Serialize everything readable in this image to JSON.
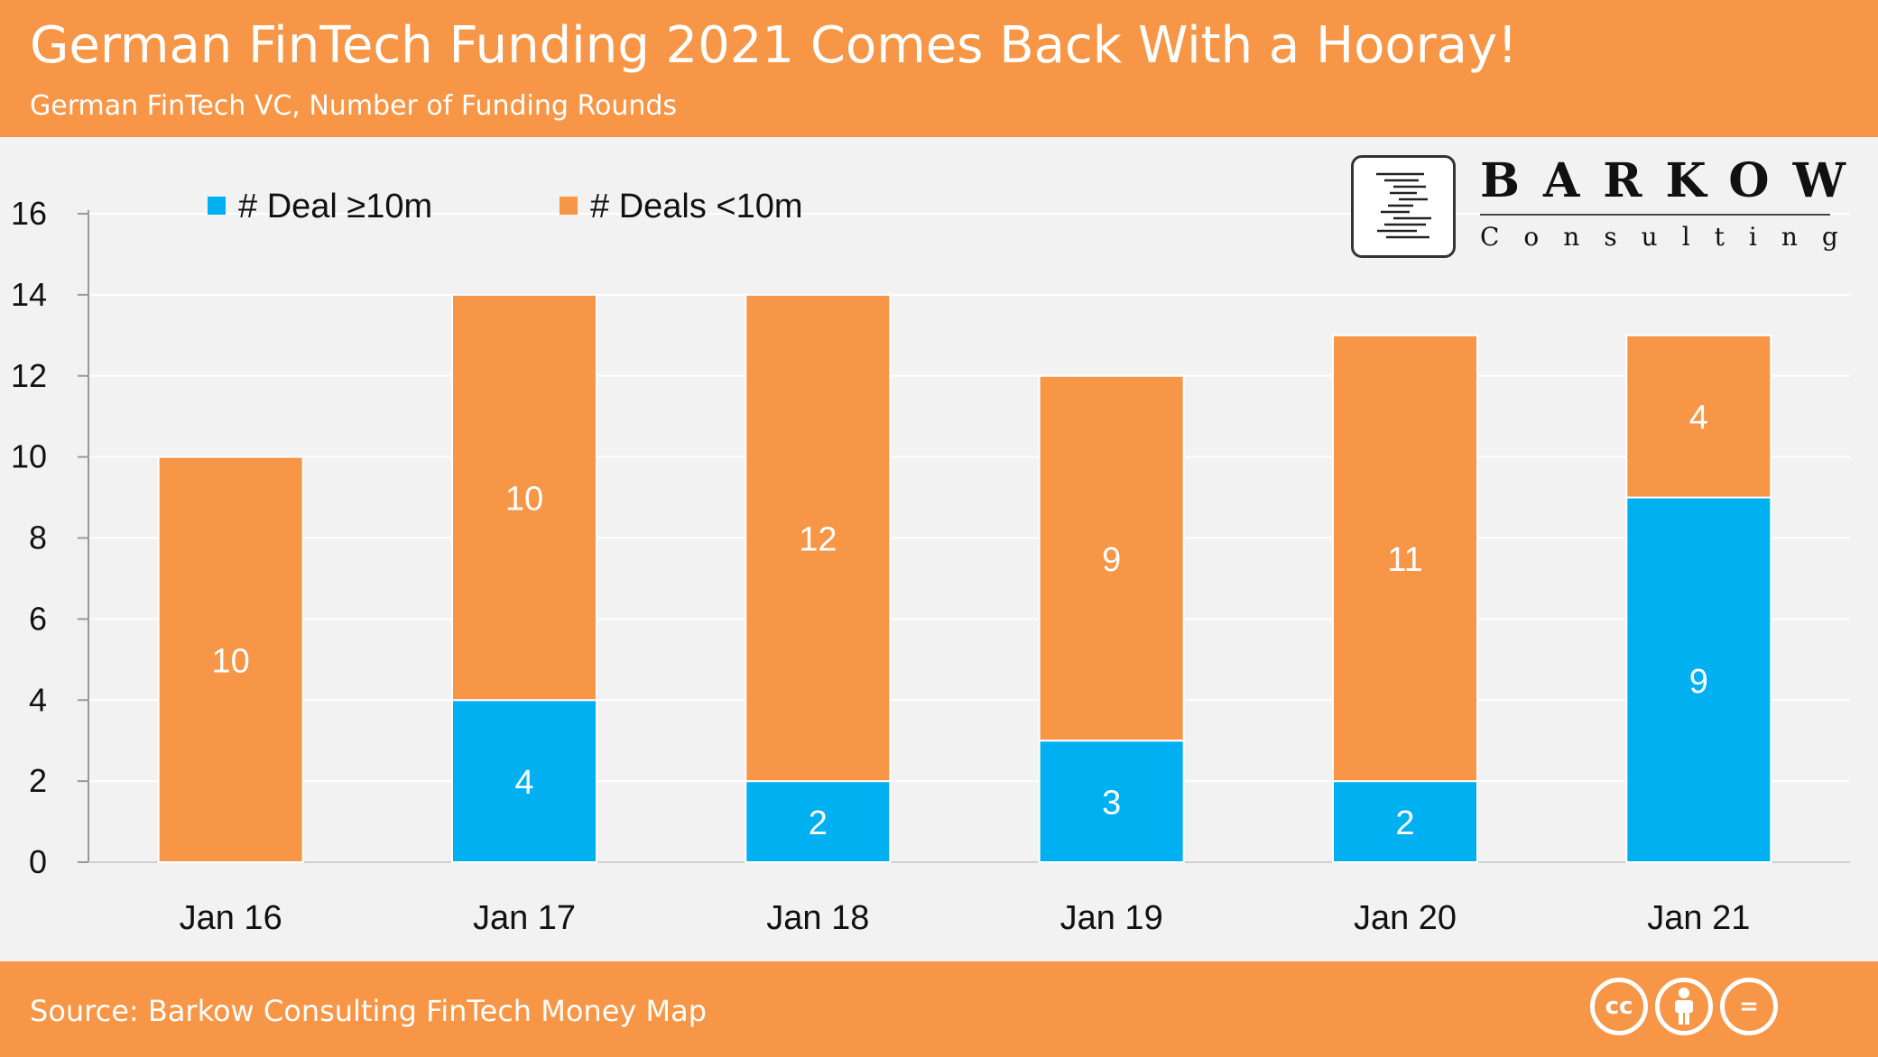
{
  "header": {
    "title": "German FinTech Funding 2021 Comes Back With a Hooray!",
    "subtitle": "German FinTech VC, Number of Funding Rounds"
  },
  "logo": {
    "wordmark": "BARKOW",
    "tagline": "Consulting"
  },
  "footer": {
    "source": "Source: Barkow Consulting FinTech Money Map",
    "license_icons": [
      "cc-icon",
      "by-icon",
      "nd-icon"
    ],
    "license_glyphs": [
      "cc",
      "=",
      "="
    ]
  },
  "colors": {
    "header_bg": "#f79646",
    "series_large": "#00b0f0",
    "series_small": "#f79646",
    "background": "#f2f2f2"
  },
  "chart_data": {
    "type": "bar",
    "stacked": true,
    "title": "",
    "xlabel": "",
    "ylabel": "",
    "ylim": [
      0,
      16
    ],
    "yticks": [
      0,
      2,
      4,
      6,
      8,
      10,
      12,
      14,
      16
    ],
    "grid": true,
    "legend_position": "top-left",
    "categories": [
      "Jan 16",
      "Jan 17",
      "Jan 18",
      "Jan 19",
      "Jan 20",
      "Jan 21"
    ],
    "series": [
      {
        "name": "# Deal ≥10m",
        "color": "#00b0f0",
        "values": [
          0,
          4,
          2,
          3,
          2,
          9
        ]
      },
      {
        "name": "# Deals <10m",
        "color": "#f79646",
        "values": [
          10,
          10,
          12,
          9,
          11,
          4
        ]
      }
    ]
  }
}
